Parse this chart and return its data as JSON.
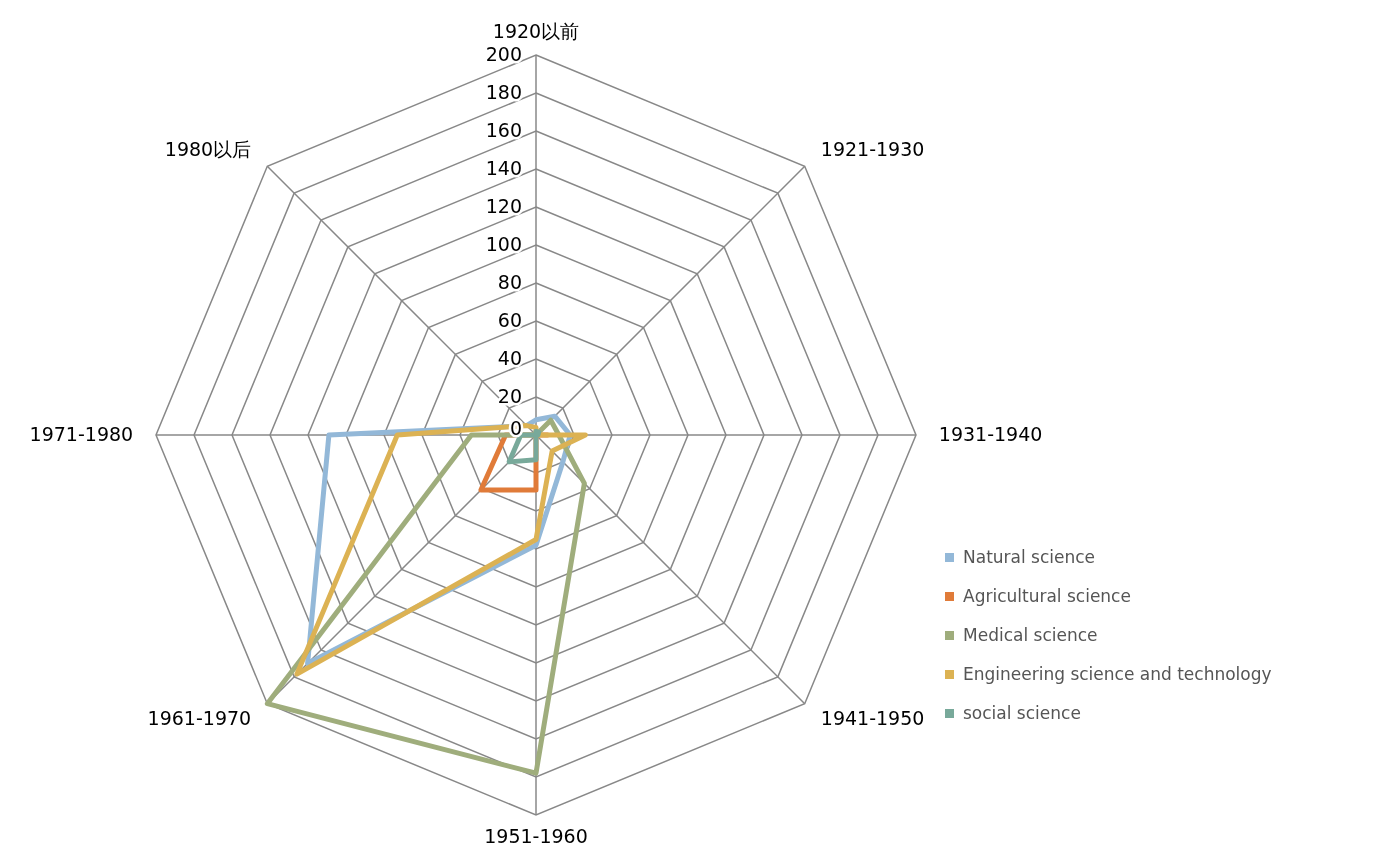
{
  "chart_data": {
    "type": "radar",
    "categories": [
      "1920以前",
      "1921-1930",
      "1931-1940",
      "1941-1950",
      "1951-1960",
      "1961-1970",
      "1971-1980",
      "1980以后"
    ],
    "ylim": [
      0,
      200
    ],
    "yticks": [
      0,
      20,
      40,
      60,
      80,
      100,
      120,
      140,
      160,
      180,
      200
    ],
    "legend": "right",
    "grid": true,
    "series": [
      {
        "name": "Natural science",
        "color": "#93b8d8",
        "values": [
          8,
          14,
          18,
          20,
          58,
          170,
          109,
          7
        ]
      },
      {
        "name": "Agricultural science",
        "color": "#e07b39",
        "values": [
          0,
          0,
          6,
          0,
          29,
          41,
          16,
          0
        ]
      },
      {
        "name": "Medical science",
        "color": "#9fad7c",
        "values": [
          0,
          11,
          12,
          36,
          178,
          200,
          34,
          0
        ]
      },
      {
        "name": "Engineering science and technology",
        "color": "#dcb253",
        "values": [
          4,
          0,
          26,
          12,
          55,
          178,
          73,
          7
        ]
      },
      {
        "name": "social science",
        "color": "#78a99a",
        "values": [
          2,
          2,
          1,
          0,
          13,
          20,
          8,
          0
        ]
      }
    ]
  }
}
